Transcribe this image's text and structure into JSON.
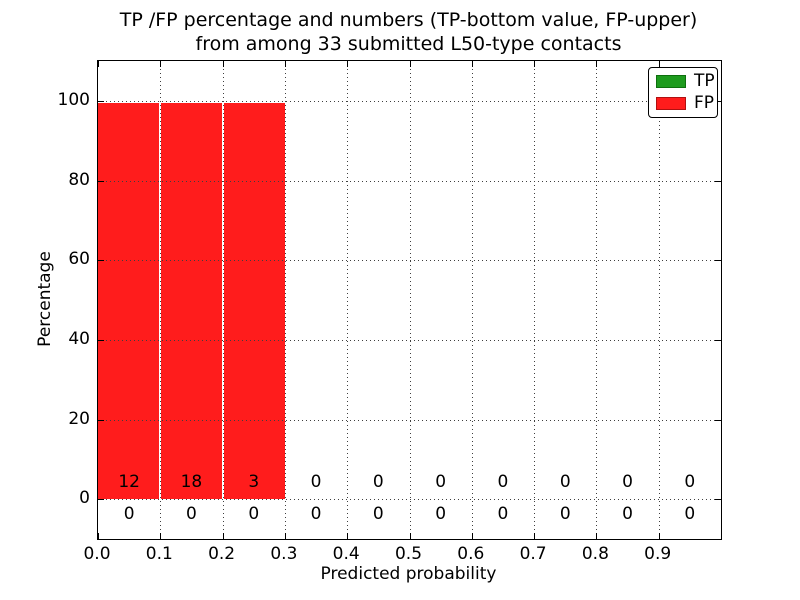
{
  "figure": {
    "title_lines": [
      "TP /FP percentage and numbers (TP-bottom value, FP-upper)",
      "from among 33 submitted L50-type contacts"
    ]
  },
  "chart_data": {
    "type": "bar",
    "stacked": true,
    "title": "TP /FP percentage and numbers (TP-bottom value, FP-upper) from among 33 submitted L50-type contacts",
    "xlabel": "Predicted probability",
    "ylabel": "Percentage",
    "xlim": [
      0.0,
      1.0
    ],
    "ylim": [
      -10,
      110
    ],
    "grid": "dotted",
    "legend_position": "upper right",
    "bin_edges": [
      0.0,
      0.1,
      0.2,
      0.3,
      0.4,
      0.5,
      0.6,
      0.7,
      0.8,
      0.9,
      1.0
    ],
    "series": [
      {
        "name": "TP",
        "color": "#1e9b1e",
        "edge_color": "#0e6f0e",
        "percent": [
          0,
          0,
          0,
          0,
          0,
          0,
          0,
          0,
          0,
          0
        ],
        "counts": [
          0,
          0,
          0,
          0,
          0,
          0,
          0,
          0,
          0,
          0
        ],
        "count_label_y": -3.7
      },
      {
        "name": "FP",
        "color": "#ff1c1c",
        "edge_color": "#b01010",
        "percent": [
          100,
          100,
          100,
          0,
          0,
          0,
          0,
          0,
          0,
          0
        ],
        "counts": [
          12,
          18,
          3,
          0,
          0,
          0,
          0,
          0,
          0,
          0
        ],
        "count_label_y": 4.2
      }
    ],
    "total_contacts": 33,
    "xticks": [
      {
        "v": 0.0,
        "label": "0.0"
      },
      {
        "v": 0.1,
        "label": "0.1"
      },
      {
        "v": 0.2,
        "label": "0.2"
      },
      {
        "v": 0.3,
        "label": "0.3"
      },
      {
        "v": 0.4,
        "label": "0.4"
      },
      {
        "v": 0.5,
        "label": "0.5"
      },
      {
        "v": 0.6,
        "label": "0.6"
      },
      {
        "v": 0.7,
        "label": "0.7"
      },
      {
        "v": 0.8,
        "label": "0.8"
      },
      {
        "v": 0.9,
        "label": "0.9"
      }
    ],
    "yticks": [
      {
        "v": 0,
        "label": "0"
      },
      {
        "v": 20,
        "label": "20"
      },
      {
        "v": 40,
        "label": "40"
      },
      {
        "v": 60,
        "label": "60"
      },
      {
        "v": 80,
        "label": "80"
      },
      {
        "v": 100,
        "label": "100"
      }
    ],
    "legend": [
      {
        "label": "TP",
        "color": "#1e9b1e",
        "border": "#0e6f0e"
      },
      {
        "label": "FP",
        "color": "#ff1c1c",
        "border": "#b01010"
      }
    ]
  }
}
